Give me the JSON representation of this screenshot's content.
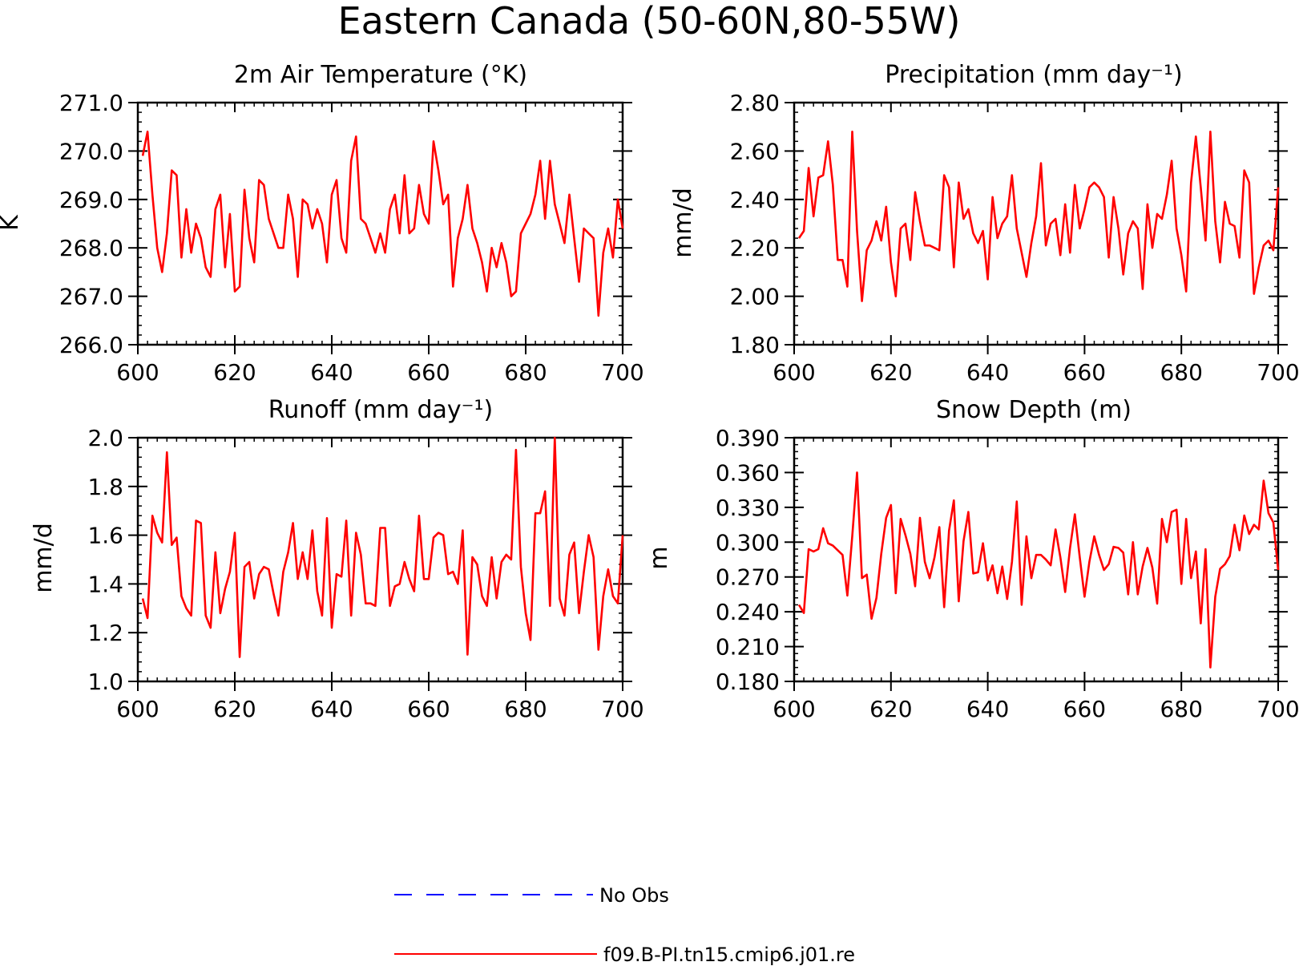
{
  "title": "Eastern Canada (50-60N,80-55W)",
  "colors": {
    "model": "#ff0000",
    "obs": "#0000ff",
    "axis": "#000000"
  },
  "legend": [
    {
      "label": "No Obs",
      "color": "#0000ff",
      "style": "dashed"
    },
    {
      "label": "f09.B-PI.tn15.cmip6.j01.re",
      "color": "#ff0000",
      "style": "solid"
    }
  ],
  "chart_data": [
    {
      "type": "line",
      "title": "2m Air Temperature (°K)",
      "ylabel": "K",
      "xlim": [
        600,
        700
      ],
      "ylim": [
        266.0,
        271.0
      ],
      "xticks": [
        600,
        620,
        640,
        660,
        680,
        700
      ],
      "xtick_labels": [
        "600",
        "620",
        "640",
        "660",
        "680",
        "700"
      ],
      "yticks": [
        266.0,
        267.0,
        268.0,
        269.0,
        270.0,
        271.0
      ],
      "ytick_labels": [
        "266.0",
        "267.0",
        "268.0",
        "269.0",
        "270.0",
        "271.0"
      ],
      "x_start": 601,
      "series": [
        {
          "name": "f09.B-PI.tn15.cmip6.j01.re",
          "values": [
            269.9,
            270.4,
            269.1,
            268.0,
            267.5,
            268.3,
            269.6,
            269.5,
            267.8,
            268.8,
            267.9,
            268.5,
            268.2,
            267.6,
            267.4,
            268.8,
            269.1,
            267.6,
            268.7,
            267.1,
            267.2,
            269.2,
            268.2,
            267.7,
            269.4,
            269.3,
            268.6,
            268.3,
            268.0,
            268.0,
            269.1,
            268.6,
            267.4,
            269.0,
            268.9,
            268.4,
            268.8,
            268.5,
            267.7,
            269.1,
            269.4,
            268.2,
            267.9,
            269.8,
            270.3,
            268.6,
            268.5,
            268.2,
            267.9,
            268.3,
            267.9,
            268.8,
            269.1,
            268.3,
            269.5,
            268.3,
            268.4,
            269.3,
            268.7,
            268.5,
            270.2,
            269.6,
            268.9,
            269.1,
            267.2,
            268.2,
            268.6,
            269.3,
            268.4,
            268.1,
            267.7,
            267.1,
            268.0,
            267.6,
            268.1,
            267.7,
            267.0,
            267.1,
            268.3,
            268.5,
            268.7,
            269.1,
            269.8,
            268.6,
            269.8,
            268.9,
            268.5,
            268.1,
            269.1,
            268.2,
            267.3,
            268.4,
            268.3,
            268.2,
            266.6,
            267.9,
            268.4,
            267.8,
            269.0,
            268.4
          ]
        }
      ]
    },
    {
      "type": "line",
      "title": "Precipitation (mm day⁻¹)",
      "ylabel": "mm/d",
      "xlim": [
        600,
        700
      ],
      "ylim": [
        1.8,
        2.8
      ],
      "xticks": [
        600,
        620,
        640,
        660,
        680,
        700
      ],
      "xtick_labels": [
        "600",
        "620",
        "640",
        "660",
        "680",
        "700"
      ],
      "yticks": [
        1.8,
        2.0,
        2.2,
        2.4,
        2.6,
        2.8
      ],
      "ytick_labels": [
        "1.80",
        "2.00",
        "2.20",
        "2.40",
        "2.60",
        "2.80"
      ],
      "x_start": 601,
      "series": [
        {
          "name": "f09.B-PI.tn15.cmip6.j01.re",
          "values": [
            2.24,
            2.27,
            2.53,
            2.33,
            2.49,
            2.5,
            2.64,
            2.46,
            2.15,
            2.15,
            2.04,
            2.68,
            2.27,
            1.98,
            2.19,
            2.23,
            2.31,
            2.23,
            2.37,
            2.14,
            2.0,
            2.28,
            2.3,
            2.15,
            2.43,
            2.31,
            2.21,
            2.21,
            2.2,
            2.19,
            2.5,
            2.45,
            2.12,
            2.47,
            2.32,
            2.36,
            2.26,
            2.22,
            2.27,
            2.07,
            2.41,
            2.24,
            2.3,
            2.33,
            2.5,
            2.28,
            2.18,
            2.08,
            2.22,
            2.33,
            2.55,
            2.21,
            2.3,
            2.32,
            2.17,
            2.38,
            2.18,
            2.46,
            2.28,
            2.36,
            2.45,
            2.47,
            2.45,
            2.41,
            2.16,
            2.41,
            2.28,
            2.09,
            2.26,
            2.31,
            2.28,
            2.03,
            2.38,
            2.2,
            2.34,
            2.32,
            2.42,
            2.56,
            2.28,
            2.17,
            2.02,
            2.47,
            2.66,
            2.45,
            2.23,
            2.68,
            2.31,
            2.14,
            2.39,
            2.3,
            2.29,
            2.16,
            2.52,
            2.47,
            2.01,
            2.12,
            2.21,
            2.23,
            2.19,
            2.45
          ]
        }
      ]
    },
    {
      "type": "line",
      "title": "Runoff (mm day⁻¹)",
      "ylabel": "mm/d",
      "xlim": [
        600,
        700
      ],
      "ylim": [
        1.0,
        2.0
      ],
      "xticks": [
        600,
        620,
        640,
        660,
        680,
        700
      ],
      "xtick_labels": [
        "600",
        "620",
        "640",
        "660",
        "680",
        "700"
      ],
      "yticks": [
        1.0,
        1.2,
        1.4,
        1.6,
        1.8,
        2.0
      ],
      "ytick_labels": [
        "1.0",
        "1.2",
        "1.4",
        "1.6",
        "1.8",
        "2.0"
      ],
      "x_start": 601,
      "series": [
        {
          "name": "f09.B-PI.tn15.cmip6.j01.re",
          "values": [
            1.34,
            1.26,
            1.68,
            1.61,
            1.57,
            1.94,
            1.56,
            1.59,
            1.35,
            1.3,
            1.27,
            1.66,
            1.65,
            1.27,
            1.22,
            1.53,
            1.28,
            1.38,
            1.45,
            1.61,
            1.1,
            1.47,
            1.49,
            1.34,
            1.44,
            1.47,
            1.46,
            1.36,
            1.27,
            1.45,
            1.53,
            1.65,
            1.42,
            1.53,
            1.42,
            1.62,
            1.37,
            1.27,
            1.67,
            1.22,
            1.44,
            1.43,
            1.66,
            1.27,
            1.61,
            1.52,
            1.32,
            1.32,
            1.31,
            1.63,
            1.63,
            1.31,
            1.39,
            1.4,
            1.49,
            1.42,
            1.37,
            1.68,
            1.42,
            1.42,
            1.59,
            1.61,
            1.6,
            1.44,
            1.45,
            1.4,
            1.62,
            1.11,
            1.51,
            1.48,
            1.35,
            1.31,
            1.51,
            1.34,
            1.49,
            1.52,
            1.5,
            1.95,
            1.47,
            1.28,
            1.17,
            1.69,
            1.69,
            1.78,
            1.31,
            2.0,
            1.34,
            1.27,
            1.52,
            1.57,
            1.28,
            1.45,
            1.6,
            1.51,
            1.13,
            1.35,
            1.46,
            1.35,
            1.32,
            1.6
          ]
        }
      ]
    },
    {
      "type": "line",
      "title": "Snow Depth (m)",
      "ylabel": "m",
      "xlim": [
        600,
        700
      ],
      "ylim": [
        0.18,
        0.39
      ],
      "xticks": [
        600,
        620,
        640,
        660,
        680,
        700
      ],
      "xtick_labels": [
        "600",
        "620",
        "640",
        "660",
        "680",
        "700"
      ],
      "yticks": [
        0.18,
        0.21,
        0.24,
        0.27,
        0.3,
        0.33,
        0.36,
        0.39
      ],
      "ytick_labels": [
        "0.180",
        "0.210",
        "0.240",
        "0.270",
        "0.300",
        "0.330",
        "0.360",
        "0.390"
      ],
      "x_start": 601,
      "series": [
        {
          "name": "f09.B-PI.tn15.cmip6.j01.re",
          "values": [
            0.246,
            0.239,
            0.294,
            0.292,
            0.294,
            0.312,
            0.299,
            0.297,
            0.293,
            0.289,
            0.254,
            0.305,
            0.36,
            0.269,
            0.272,
            0.234,
            0.252,
            0.29,
            0.321,
            0.332,
            0.256,
            0.32,
            0.306,
            0.29,
            0.262,
            0.321,
            0.283,
            0.269,
            0.287,
            0.313,
            0.244,
            0.31,
            0.336,
            0.249,
            0.301,
            0.326,
            0.273,
            0.274,
            0.299,
            0.267,
            0.28,
            0.256,
            0.279,
            0.251,
            0.283,
            0.335,
            0.246,
            0.305,
            0.269,
            0.289,
            0.289,
            0.285,
            0.28,
            0.311,
            0.287,
            0.257,
            0.295,
            0.324,
            0.287,
            0.253,
            0.283,
            0.305,
            0.289,
            0.276,
            0.281,
            0.296,
            0.295,
            0.291,
            0.255,
            0.3,
            0.255,
            0.279,
            0.295,
            0.278,
            0.247,
            0.32,
            0.3,
            0.326,
            0.328,
            0.264,
            0.32,
            0.269,
            0.292,
            0.23,
            0.294,
            0.192,
            0.253,
            0.277,
            0.281,
            0.288,
            0.315,
            0.293,
            0.323,
            0.307,
            0.315,
            0.311,
            0.353,
            0.325,
            0.317,
            0.276
          ]
        }
      ]
    }
  ]
}
